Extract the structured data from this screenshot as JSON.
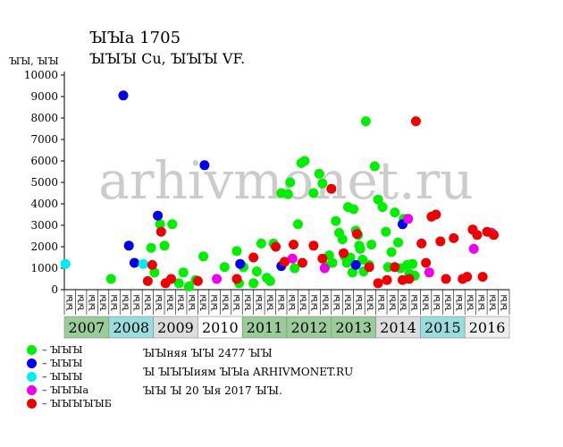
{
  "chart_data": {
    "type": "scatter",
    "title": "ꙐꙐа 1705",
    "subtitle": "ꙐꙐꙐ Cu, ꙐꙐꙐ VF.",
    "ylabel": "ꙐꙐ, ꙐꙐ",
    "ylim": [
      0,
      10000
    ],
    "yticks": [
      0,
      1000,
      2000,
      3000,
      4000,
      5000,
      6000,
      7000,
      8000,
      9000,
      10000
    ],
    "grid": false,
    "years": [
      {
        "label": "2007",
        "color": "#99cc99"
      },
      {
        "label": "2008",
        "color": "#99dddd"
      },
      {
        "label": "2009",
        "color": "#dddddd"
      },
      {
        "label": "2010",
        "color": "#ffffff"
      },
      {
        "label": "2011",
        "color": "#99cc99"
      },
      {
        "label": "2012",
        "color": "#99cc99"
      },
      {
        "label": "2013",
        "color": "#99cc99"
      },
      {
        "label": "2014",
        "color": "#dddddd"
      },
      {
        "label": "2015",
        "color": "#99dddd"
      },
      {
        "label": "2016",
        "color": "#eeeeee"
      }
    ],
    "month_labels": [
      "ꙐꙐ",
      "ꙐꙐ",
      "ꙐꙐ",
      "ꙐꙐ",
      "ꙐꙐ",
      "ꙐꙐ",
      "ꙐꙐ",
      "ꙐꙐ",
      "ꙐꙐ",
      "ꙐꙐ",
      "ꙐꙐ",
      "ꙐꙐ",
      "ꙐꙐ",
      "ꙐꙐ",
      "ꙐꙐ",
      "ꙐꙐ",
      "ꙐꙐ",
      "ꙐꙐ",
      "ꙐꙐ",
      "ꙐꙐ",
      "ꙐꙐ",
      "ꙐꙐ",
      "ꙐꙐ",
      "ꙐꙐ",
      "ꙐꙐ",
      "ꙐꙐ",
      "ꙐꙐ",
      "ꙐꙐ",
      "ꙐꙐ",
      "ꙐꙐ",
      "ꙐꙐ",
      "ꙐꙐ",
      "ꙐꙐ",
      "ꙐꙐ",
      "ꙐꙐ",
      "ꙐꙐ",
      "ꙐꙐ",
      "ꙐꙐ",
      "ꙐꙐ",
      "ꙐꙐ"
    ],
    "series": [
      {
        "name": "ꙐꙐꙐ",
        "color": "#00ee00",
        "x": [
          4.2,
          7.8,
          8.1,
          8.6,
          9.0,
          9.7,
          10.3,
          10.7,
          11.2,
          11.8,
          12.5,
          14.4,
          15.5,
          15.7,
          16.1,
          17.0,
          17.3,
          17.7,
          18.2,
          18.5,
          18.8,
          19.5,
          20.1,
          20.3,
          20.7,
          21.0,
          21.3,
          21.6,
          22.4,
          22.9,
          23.2,
          23.5,
          23.8,
          24.1,
          24.4,
          24.7,
          25.0,
          25.2,
          25.4,
          25.5,
          25.7,
          25.9,
          26.0,
          26.2,
          26.4,
          26.5,
          26.6,
          26.8,
          26.9,
          27.1,
          27.4,
          27.6,
          27.9,
          28.2,
          28.6,
          28.9,
          29.1,
          29.4,
          29.7,
          30.0,
          30.2,
          30.5,
          30.8,
          31.0,
          31.3,
          31.5
        ],
        "y": [
          500,
          1950,
          800,
          3050,
          2050,
          3050,
          300,
          800,
          150,
          450,
          1550,
          1050,
          1800,
          300,
          1050,
          300,
          850,
          2150,
          550,
          400,
          2150,
          4500,
          4450,
          5000,
          1000,
          3050,
          5900,
          6000,
          4500,
          5400,
          4950,
          1100,
          1600,
          1250,
          3200,
          2650,
          2350,
          1550,
          1250,
          3850,
          1500,
          800,
          3750,
          2750,
          2550,
          2050,
          1900,
          1400,
          850,
          7850,
          1150,
          2100,
          5750,
          4200,
          3850,
          2700,
          1050,
          1750,
          3600,
          2200,
          1000,
          3300,
          1150,
          750,
          1200,
          650
        ]
      },
      {
        "name": "ꙐꙐꙐ",
        "color": "#0000ee",
        "x": [
          5.3,
          5.8,
          6.3,
          8.4,
          12.6,
          15.8,
          19.5,
          26.2,
          30.4
        ],
        "y": [
          9050,
          2050,
          1250,
          3450,
          5800,
          1200,
          1100,
          1150,
          3050
        ]
      },
      {
        "name": "ꙐꙐꙐ",
        "color": "#00eeee",
        "x": [
          0.1,
          7.1
        ],
        "y": [
          1200,
          1200
        ]
      },
      {
        "name": "ꙐꙐꙐа",
        "color": "#ee00ee",
        "x": [
          13.7,
          20.5,
          23.4,
          30.9,
          32.8,
          36.8,
          38.4
        ],
        "y": [
          500,
          1450,
          1000,
          3300,
          800,
          1900,
          2650
        ]
      },
      {
        "name": "ꙐꙐꙐꙐꙐБ",
        "color": "#ee0000",
        "x": [
          7.5,
          7.9,
          8.7,
          9.1,
          9.6,
          12.0,
          15.5,
          17.0,
          19.0,
          19.8,
          20.6,
          21.4,
          22.4,
          23.2,
          24.0,
          25.1,
          26.3,
          27.4,
          28.2,
          29.0,
          29.7,
          30.4,
          31.0,
          31.6,
          32.1,
          32.5,
          33.0,
          33.4,
          33.8,
          34.3,
          35.0,
          35.8,
          36.2,
          36.7,
          37.1,
          37.6,
          38.0,
          38.6
        ],
        "y": [
          400,
          1150,
          2700,
          300,
          500,
          400,
          500,
          1500,
          2000,
          1300,
          2100,
          1250,
          2050,
          1450,
          4700,
          1700,
          2600,
          1050,
          300,
          450,
          1050,
          450,
          500,
          7850,
          2150,
          1250,
          3400,
          3500,
          2250,
          500,
          2400,
          500,
          600,
          2800,
          2550,
          600,
          2700,
          2550
        ]
      }
    ]
  },
  "legend": [
    {
      "label": "– ꙐꙐꙐ",
      "color": "#00ee00"
    },
    {
      "label": "– ꙐꙐꙐ",
      "color": "#0000ee"
    },
    {
      "label": "– ꙐꙐꙐ",
      "color": "#00eeee"
    },
    {
      "label": "– ꙐꙐꙐа",
      "color": "#ee00ee"
    },
    {
      "label": "– ꙐꙐꙐꙐꙐБ",
      "color": "#ee0000"
    }
  ],
  "notes": {
    "line1": "ꙐꙐняя ꙐꙐ 2477 ꙐꙐ",
    "line2": "Ꙑ ꙐꙐꙐиям ꙐꙐа ARHIVMONET.RU",
    "line3": "ꙐꙐ Ꙑ 20 Ꙑя 2017 ꙐꙐ."
  },
  "watermark": "arhivmonet.ru"
}
